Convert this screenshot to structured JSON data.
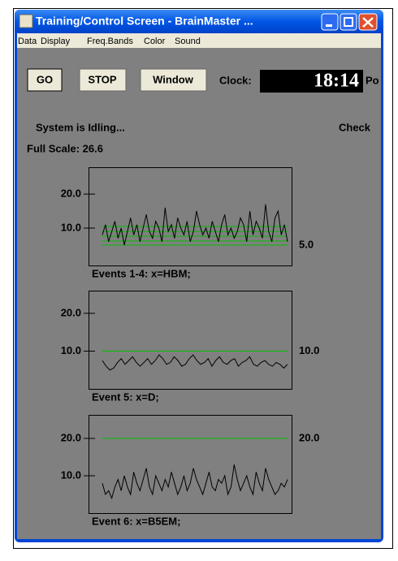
{
  "window": {
    "title": "Training/Control Screen - BrainMaster ..."
  },
  "menu": [
    "Data",
    "Display",
    "Freq.Bands",
    "Color",
    "Sound"
  ],
  "toolbar": {
    "buttons": [
      "GO",
      "STOP",
      "Window"
    ],
    "clock_label": "Clock:",
    "clock_value": "18:14",
    "cut_label": "Po"
  },
  "status": "System is Idling...",
  "status_right": "Check",
  "full_scale": "Full Scale: 26.6",
  "chart_data": [
    {
      "type": "line",
      "caption": "Events 1-4: x=HBM;",
      "ylim": [
        -1,
        27.9
      ],
      "yticks": [
        {
          "value": 10,
          "label": "10.0"
        },
        {
          "value": 20,
          "label": "20.0"
        }
      ],
      "thresholds": [
        10.5,
        9,
        7.6,
        6.2,
        5
      ],
      "threshold_color": "#00c000",
      "threshold_label": "5.0",
      "series": [
        {
          "color": "#000000",
          "values": [
            8,
            11,
            6,
            9,
            12,
            7,
            10,
            5,
            9,
            13,
            8,
            11,
            6,
            10,
            14,
            9,
            7,
            12,
            10,
            6,
            16,
            9,
            11,
            7,
            13,
            10,
            8,
            12,
            6,
            9,
            15,
            11,
            8,
            10,
            7,
            12,
            9,
            6,
            11,
            14,
            8,
            10,
            7,
            9,
            13,
            11,
            6,
            15,
            8,
            12,
            10,
            7,
            17,
            9,
            6,
            13,
            15,
            8,
            11,
            6
          ]
        }
      ]
    },
    {
      "type": "line",
      "caption": "Event 5: x=D;",
      "ylim": [
        0,
        26
      ],
      "yticks": [
        {
          "value": 10,
          "label": "10.0"
        },
        {
          "value": 20,
          "label": "20.0"
        }
      ],
      "thresholds": [
        10
      ],
      "threshold_color": "#00c000",
      "threshold_label": "10.0",
      "series": [
        {
          "color": "#000000",
          "values": [
            7.5,
            6,
            5,
            5.5,
            7,
            8,
            6.5,
            7.5,
            8.5,
            7,
            6,
            7,
            8,
            6.5,
            7.5,
            9,
            8,
            6.5,
            7,
            8.5,
            7.5,
            6,
            6.5,
            8,
            9,
            7.5,
            6.5,
            7,
            8,
            6,
            7.5,
            8.5,
            7,
            6.5,
            7.5,
            8,
            6,
            7,
            7.5,
            8.5,
            6.5,
            6,
            7,
            7.5,
            6.5,
            6,
            7,
            6.5,
            5.5,
            6.5
          ]
        }
      ]
    },
    {
      "type": "line",
      "caption": "Event 6: x=B5EM;",
      "ylim": [
        0,
        26.3
      ],
      "yticks": [
        {
          "value": 10,
          "label": "10.0"
        },
        {
          "value": 20,
          "label": "20.0"
        }
      ],
      "thresholds": [
        20
      ],
      "threshold_color": "#00c000",
      "threshold_label": "20.0",
      "series": [
        {
          "color": "#000000",
          "values": [
            8,
            5,
            6,
            4,
            7,
            9,
            6,
            10,
            7,
            5,
            11,
            8,
            6,
            9,
            12,
            7,
            5,
            10,
            8,
            6,
            9,
            7,
            11,
            8,
            5,
            7,
            10,
            6,
            8,
            12,
            9,
            7,
            5,
            8,
            11,
            7,
            6,
            9,
            8,
            10,
            5,
            7,
            13,
            9,
            6,
            8,
            10,
            7,
            5,
            11,
            8,
            6,
            12,
            9,
            7,
            5,
            6,
            8,
            7,
            9
          ]
        }
      ]
    }
  ]
}
